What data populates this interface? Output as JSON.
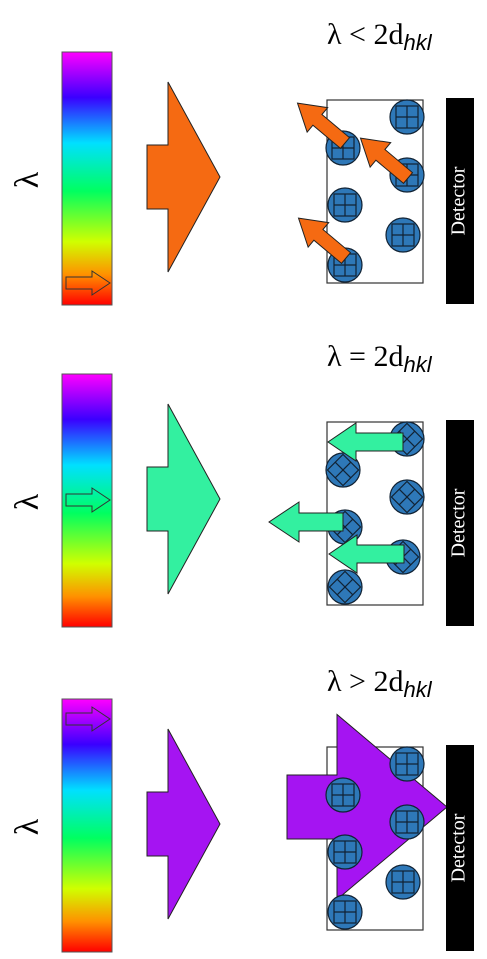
{
  "panels": [
    {
      "lambda_label": "λ",
      "condition": {
        "text": "λ < 2d",
        "subscript": "hkl"
      },
      "detector": "Detector"
    },
    {
      "lambda_label": "λ",
      "condition": {
        "text": "λ = 2d",
        "subscript": "hkl"
      },
      "detector": "Detector"
    },
    {
      "lambda_label": "λ",
      "condition": {
        "text": "λ > 2d",
        "subscript": "hkl"
      },
      "detector": "Detector"
    }
  ]
}
